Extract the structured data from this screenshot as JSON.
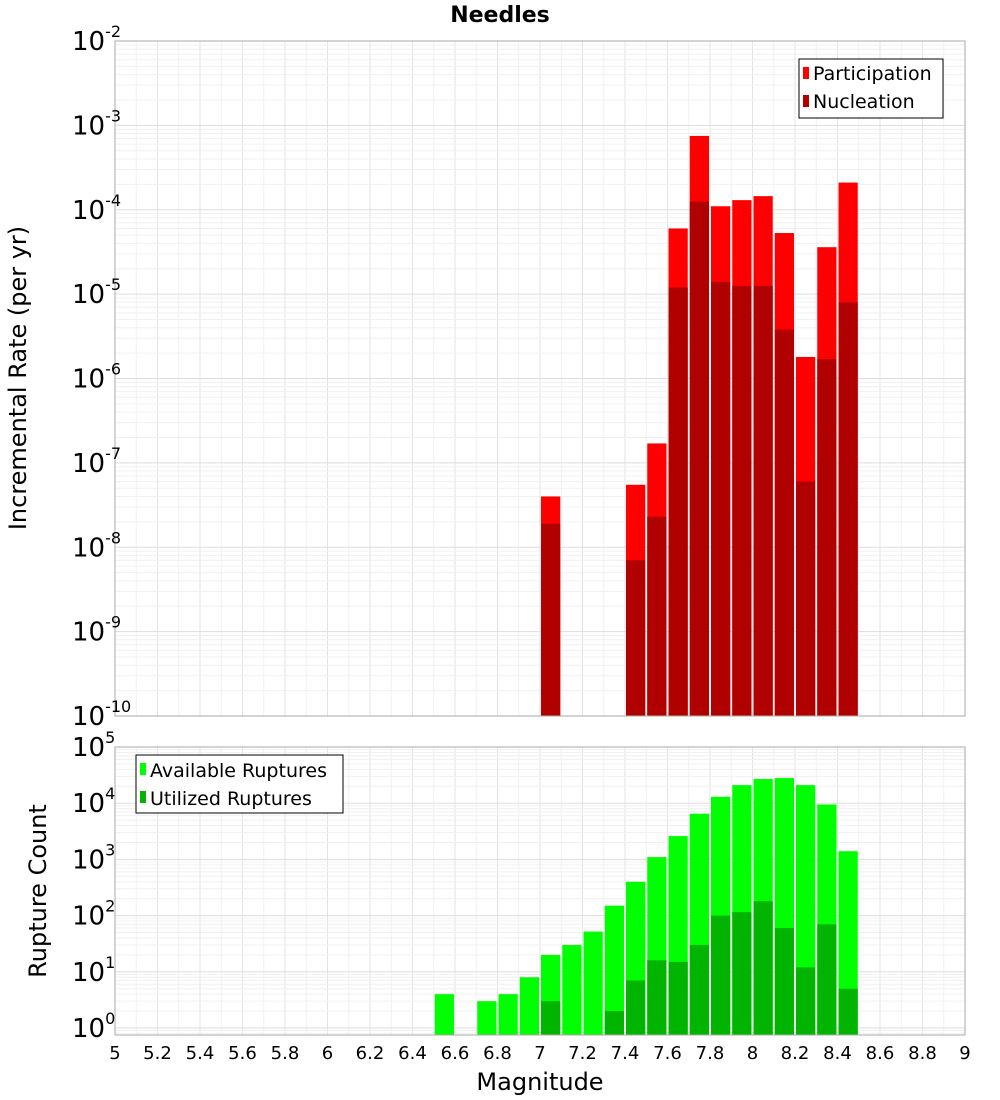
{
  "chart_data": [
    {
      "type": "bar",
      "title": "Needles",
      "xlabel": "",
      "ylabel": "Incremental Rate (per yr)",
      "yscale": "log",
      "ylim": [
        1e-10,
        0.01
      ],
      "xlim": [
        5,
        9
      ],
      "bar_width": 0.1,
      "legend_position": "top-right",
      "categories": [
        7.05,
        7.45,
        7.55,
        7.65,
        7.75,
        7.85,
        7.95,
        8.05,
        8.15,
        8.25,
        8.35,
        8.45
      ],
      "series": [
        {
          "name": "Participation",
          "color": "#ff0000",
          "values": [
            4e-08,
            5.5e-08,
            1.7e-07,
            6e-05,
            0.00075,
            0.00011,
            0.00013,
            0.000145,
            5.3e-05,
            1.8e-06,
            3.6e-05,
            0.00021
          ]
        },
        {
          "name": "Nucleation",
          "color": "#b00000",
          "values": [
            1.9e-08,
            7e-09,
            2.3e-08,
            1.2e-05,
            0.000125,
            1.4e-05,
            1.25e-05,
            1.25e-05,
            3.8e-06,
            6e-08,
            1.7e-06,
            8e-06
          ]
        }
      ]
    },
    {
      "type": "bar",
      "title": "",
      "xlabel": "Magnitude",
      "ylabel": "Rupture Count",
      "yscale": "log",
      "ylim": [
        0.75,
        100000.0
      ],
      "xlim": [
        5,
        9
      ],
      "bar_width": 0.1,
      "legend_position": "top-left",
      "x_ticks": [
        "5",
        "5.2",
        "5.4",
        "5.6",
        "5.8",
        "6",
        "6.2",
        "6.4",
        "6.6",
        "6.8",
        "7",
        "7.2",
        "7.4",
        "7.6",
        "7.8",
        "8",
        "8.2",
        "8.4",
        "8.6",
        "8.8",
        "9"
      ],
      "categories": [
        6.55,
        6.75,
        6.85,
        6.95,
        7.05,
        7.15,
        7.25,
        7.35,
        7.45,
        7.55,
        7.65,
        7.75,
        7.85,
        7.95,
        8.05,
        8.15,
        8.25,
        8.35,
        8.45
      ],
      "series": [
        {
          "name": "Available Ruptures",
          "color": "#00ff00",
          "values": [
            4,
            3,
            4,
            8,
            20,
            30,
            52,
            150,
            400,
            1100,
            2600,
            6500,
            13000,
            21000,
            27000,
            28000,
            21000,
            9500,
            1400
          ]
        },
        {
          "name": "Utilized Ruptures",
          "color": "#00b400",
          "values": [
            null,
            null,
            null,
            null,
            3,
            null,
            null,
            2,
            7,
            16,
            15,
            30,
            100,
            115,
            180,
            60,
            12,
            70,
            5
          ]
        }
      ]
    }
  ],
  "y_tick_base": "10",
  "top_y_exponents": [
    "-10",
    "-9",
    "-8",
    "-7",
    "-6",
    "-5",
    "-4",
    "-3",
    "-2"
  ],
  "bottom_y_exponents": [
    "0",
    "1",
    "2",
    "3",
    "4",
    "5"
  ]
}
